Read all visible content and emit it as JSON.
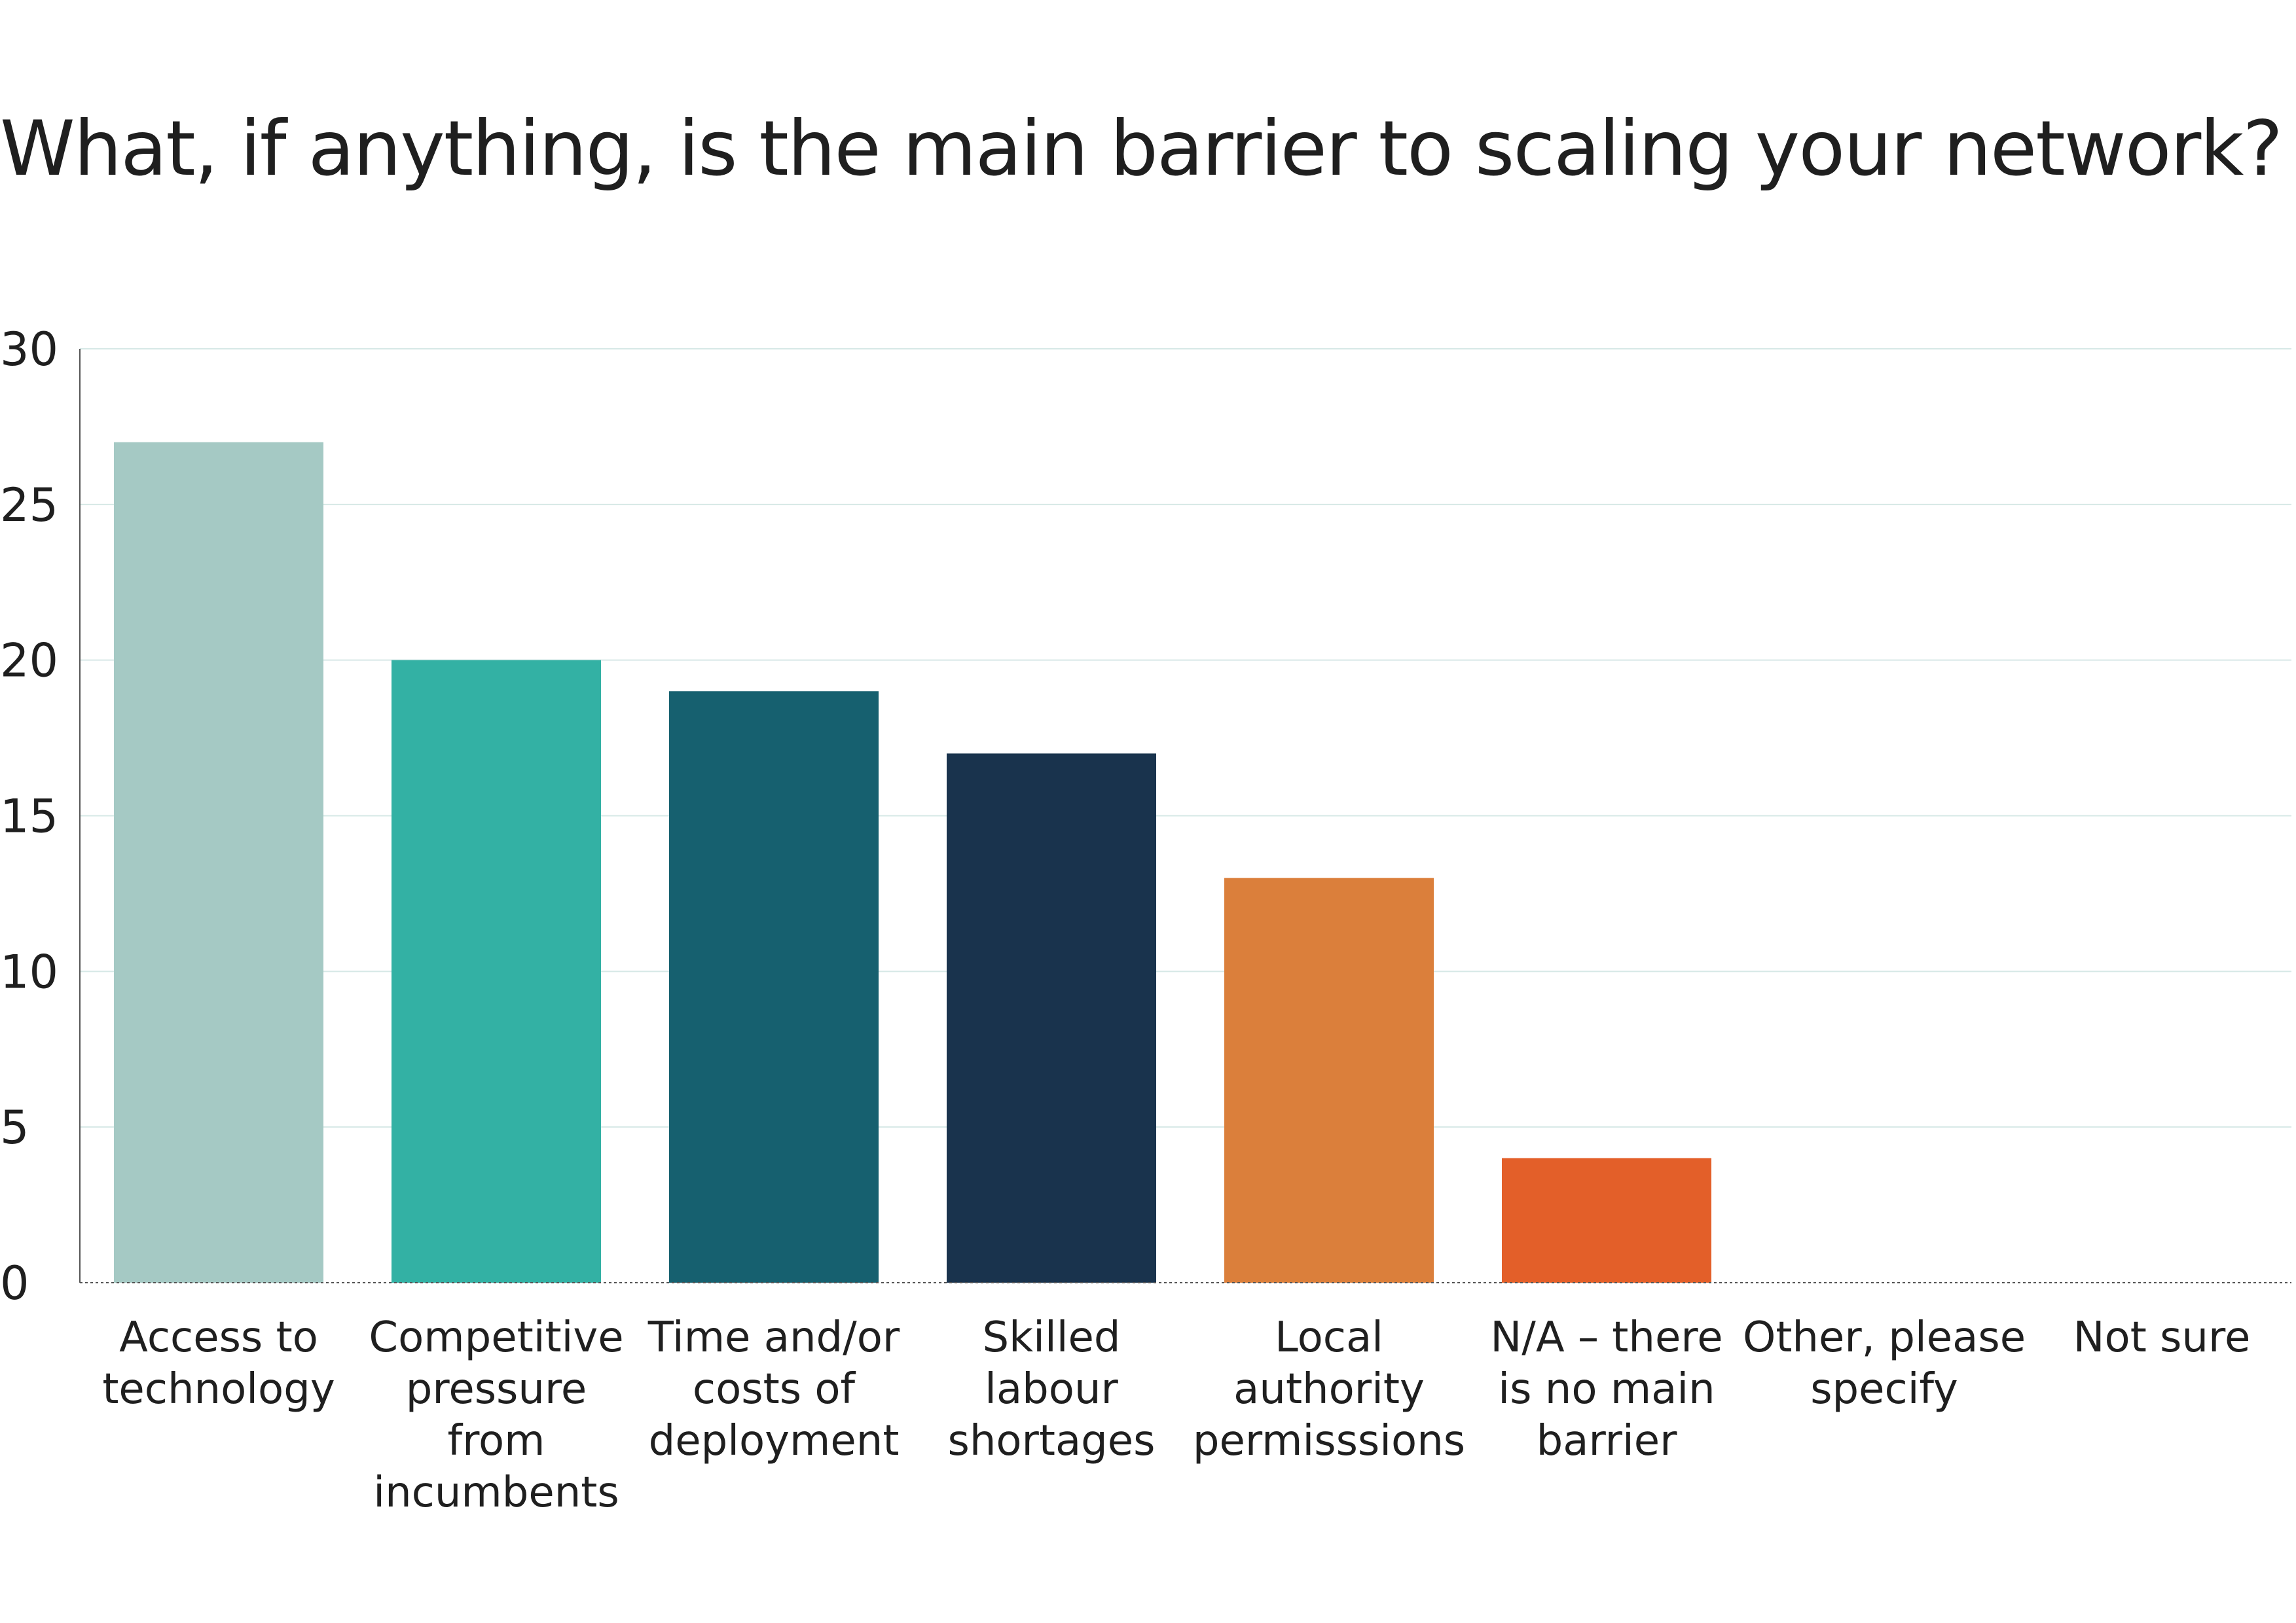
{
  "chart_data": {
    "type": "bar",
    "title": "What, if anything, is the main barrier to scaling your network?",
    "categories": [
      [
        "Access to",
        "technology"
      ],
      [
        "Competitive",
        "pressure",
        "from",
        "incumbents"
      ],
      [
        "Time and/or",
        "costs of",
        "deployment"
      ],
      [
        "Skilled",
        "labour",
        "shortages"
      ],
      [
        "Local",
        "authority",
        "permisssions"
      ],
      [
        "N/A – there",
        "is no main",
        "barrier"
      ],
      [
        "Other, please",
        "specify"
      ],
      [
        "Not sure"
      ]
    ],
    "values": [
      27,
      20,
      19,
      17,
      13,
      4,
      0,
      0
    ],
    "colors": [
      "#a5c9c4",
      "#33b1a4",
      "#16606f",
      "#19334d",
      "#db7f3b",
      "#e35f29",
      "#cccccc",
      "#cccccc"
    ],
    "ylim": [
      0,
      30
    ],
    "yticks": [
      "0",
      "5",
      "10",
      "15",
      "20",
      "25",
      "30"
    ],
    "xlabel": "",
    "ylabel": "",
    "grid": true,
    "gridline_color": "#d6e8e6",
    "axis_color": "#555555"
  }
}
